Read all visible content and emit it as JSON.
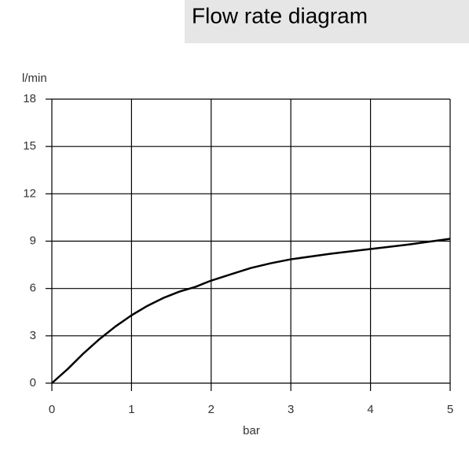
{
  "chart_data": {
    "type": "line",
    "title": "Flow rate diagram",
    "x_label": "bar",
    "y_label": "l/min",
    "x": [
      0,
      0.2,
      0.4,
      0.6,
      0.8,
      1,
      1.2,
      1.4,
      1.6,
      1.8,
      2,
      2.25,
      2.5,
      2.75,
      3,
      3.5,
      4,
      4.5,
      5
    ],
    "series": [
      {
        "color": "#000000",
        "values": [
          0,
          0.9,
          1.9,
          2.8,
          3.6,
          4.3,
          4.9,
          5.4,
          5.8,
          6.1,
          6.5,
          6.9,
          7.3,
          7.6,
          7.85,
          8.2,
          8.5,
          8.8,
          9.15
        ]
      }
    ],
    "xlim": [
      0,
      5
    ],
    "xticks": [
      0,
      1,
      2,
      3,
      4,
      5
    ],
    "ylim": [
      0,
      18
    ],
    "yticks": [
      0,
      3,
      6,
      9,
      12,
      15,
      18
    ],
    "grid": true
  }
}
